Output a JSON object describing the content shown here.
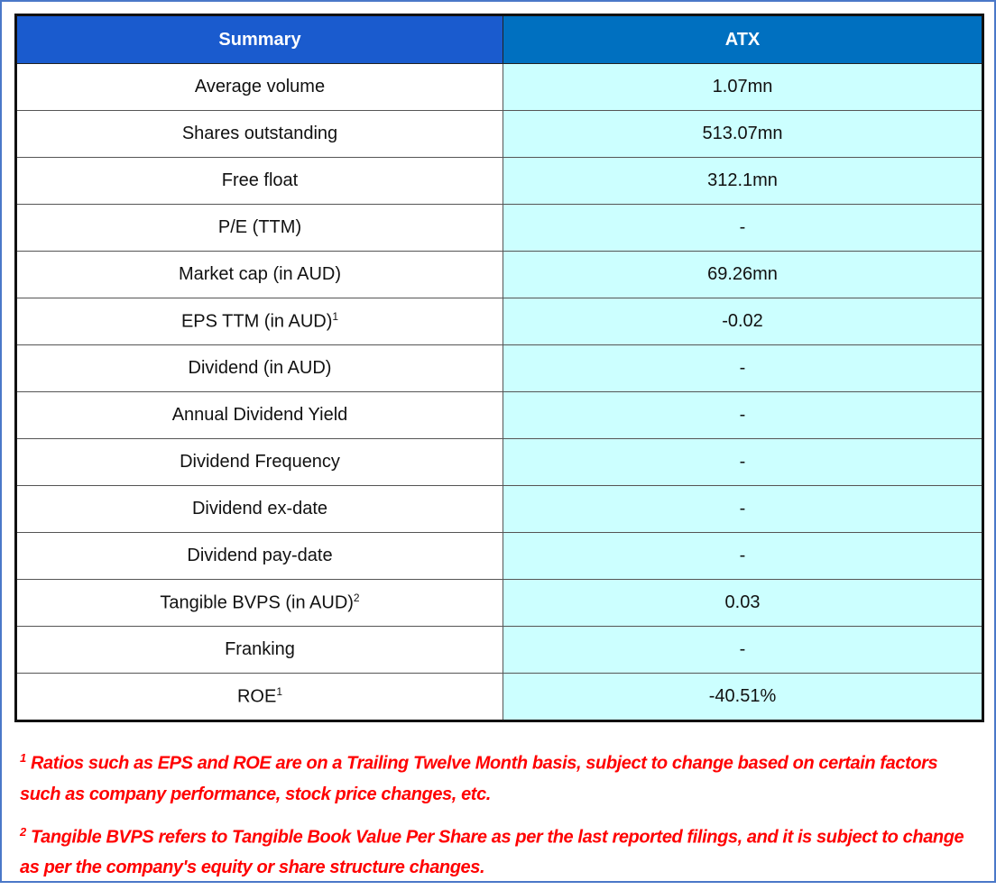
{
  "header": {
    "col1": "Summary",
    "col2": "ATX"
  },
  "rows": [
    {
      "label": "Average volume",
      "sup": "",
      "value": "1.07mn"
    },
    {
      "label": "Shares outstanding",
      "sup": "",
      "value": "513.07mn"
    },
    {
      "label": "Free float",
      "sup": "",
      "value": "312.1mn"
    },
    {
      "label": "P/E (TTM)",
      "sup": "",
      "value": "-"
    },
    {
      "label": "Market cap (in AUD)",
      "sup": "",
      "value": "69.26mn"
    },
    {
      "label": "EPS TTM (in AUD)",
      "sup": "1",
      "value": "-0.02"
    },
    {
      "label": "Dividend (in AUD)",
      "sup": "",
      "value": "-"
    },
    {
      "label": "Annual Dividend Yield",
      "sup": "",
      "value": "-"
    },
    {
      "label": "Dividend Frequency",
      "sup": "",
      "value": "-"
    },
    {
      "label": "Dividend ex-date",
      "sup": "",
      "value": "-"
    },
    {
      "label": "Dividend pay-date",
      "sup": "",
      "value": "-"
    },
    {
      "label": "Tangible BVPS (in AUD)",
      "sup": "2",
      "value": "0.03"
    },
    {
      "label": "Franking",
      "sup": "",
      "value": "-"
    },
    {
      "label": "ROE",
      "sup": "1",
      "value": "-40.51%"
    }
  ],
  "footnotes": [
    {
      "mark": "1",
      "text": "Ratios such as EPS and ROE are on a Trailing Twelve Month basis, subject to change based on certain factors such as company performance, stock price changes, etc."
    },
    {
      "mark": "2",
      "text": "Tangible BVPS refers to Tangible Book Value Per Share as per the last reported filings, and it is subject to change as per the company's equity or share structure changes."
    }
  ],
  "colors": {
    "header_left": "#1a5bce",
    "header_right": "#0070c0",
    "value_cell": "#ccffff",
    "footnote": "#ff0000",
    "frame": "#4a78c8"
  }
}
